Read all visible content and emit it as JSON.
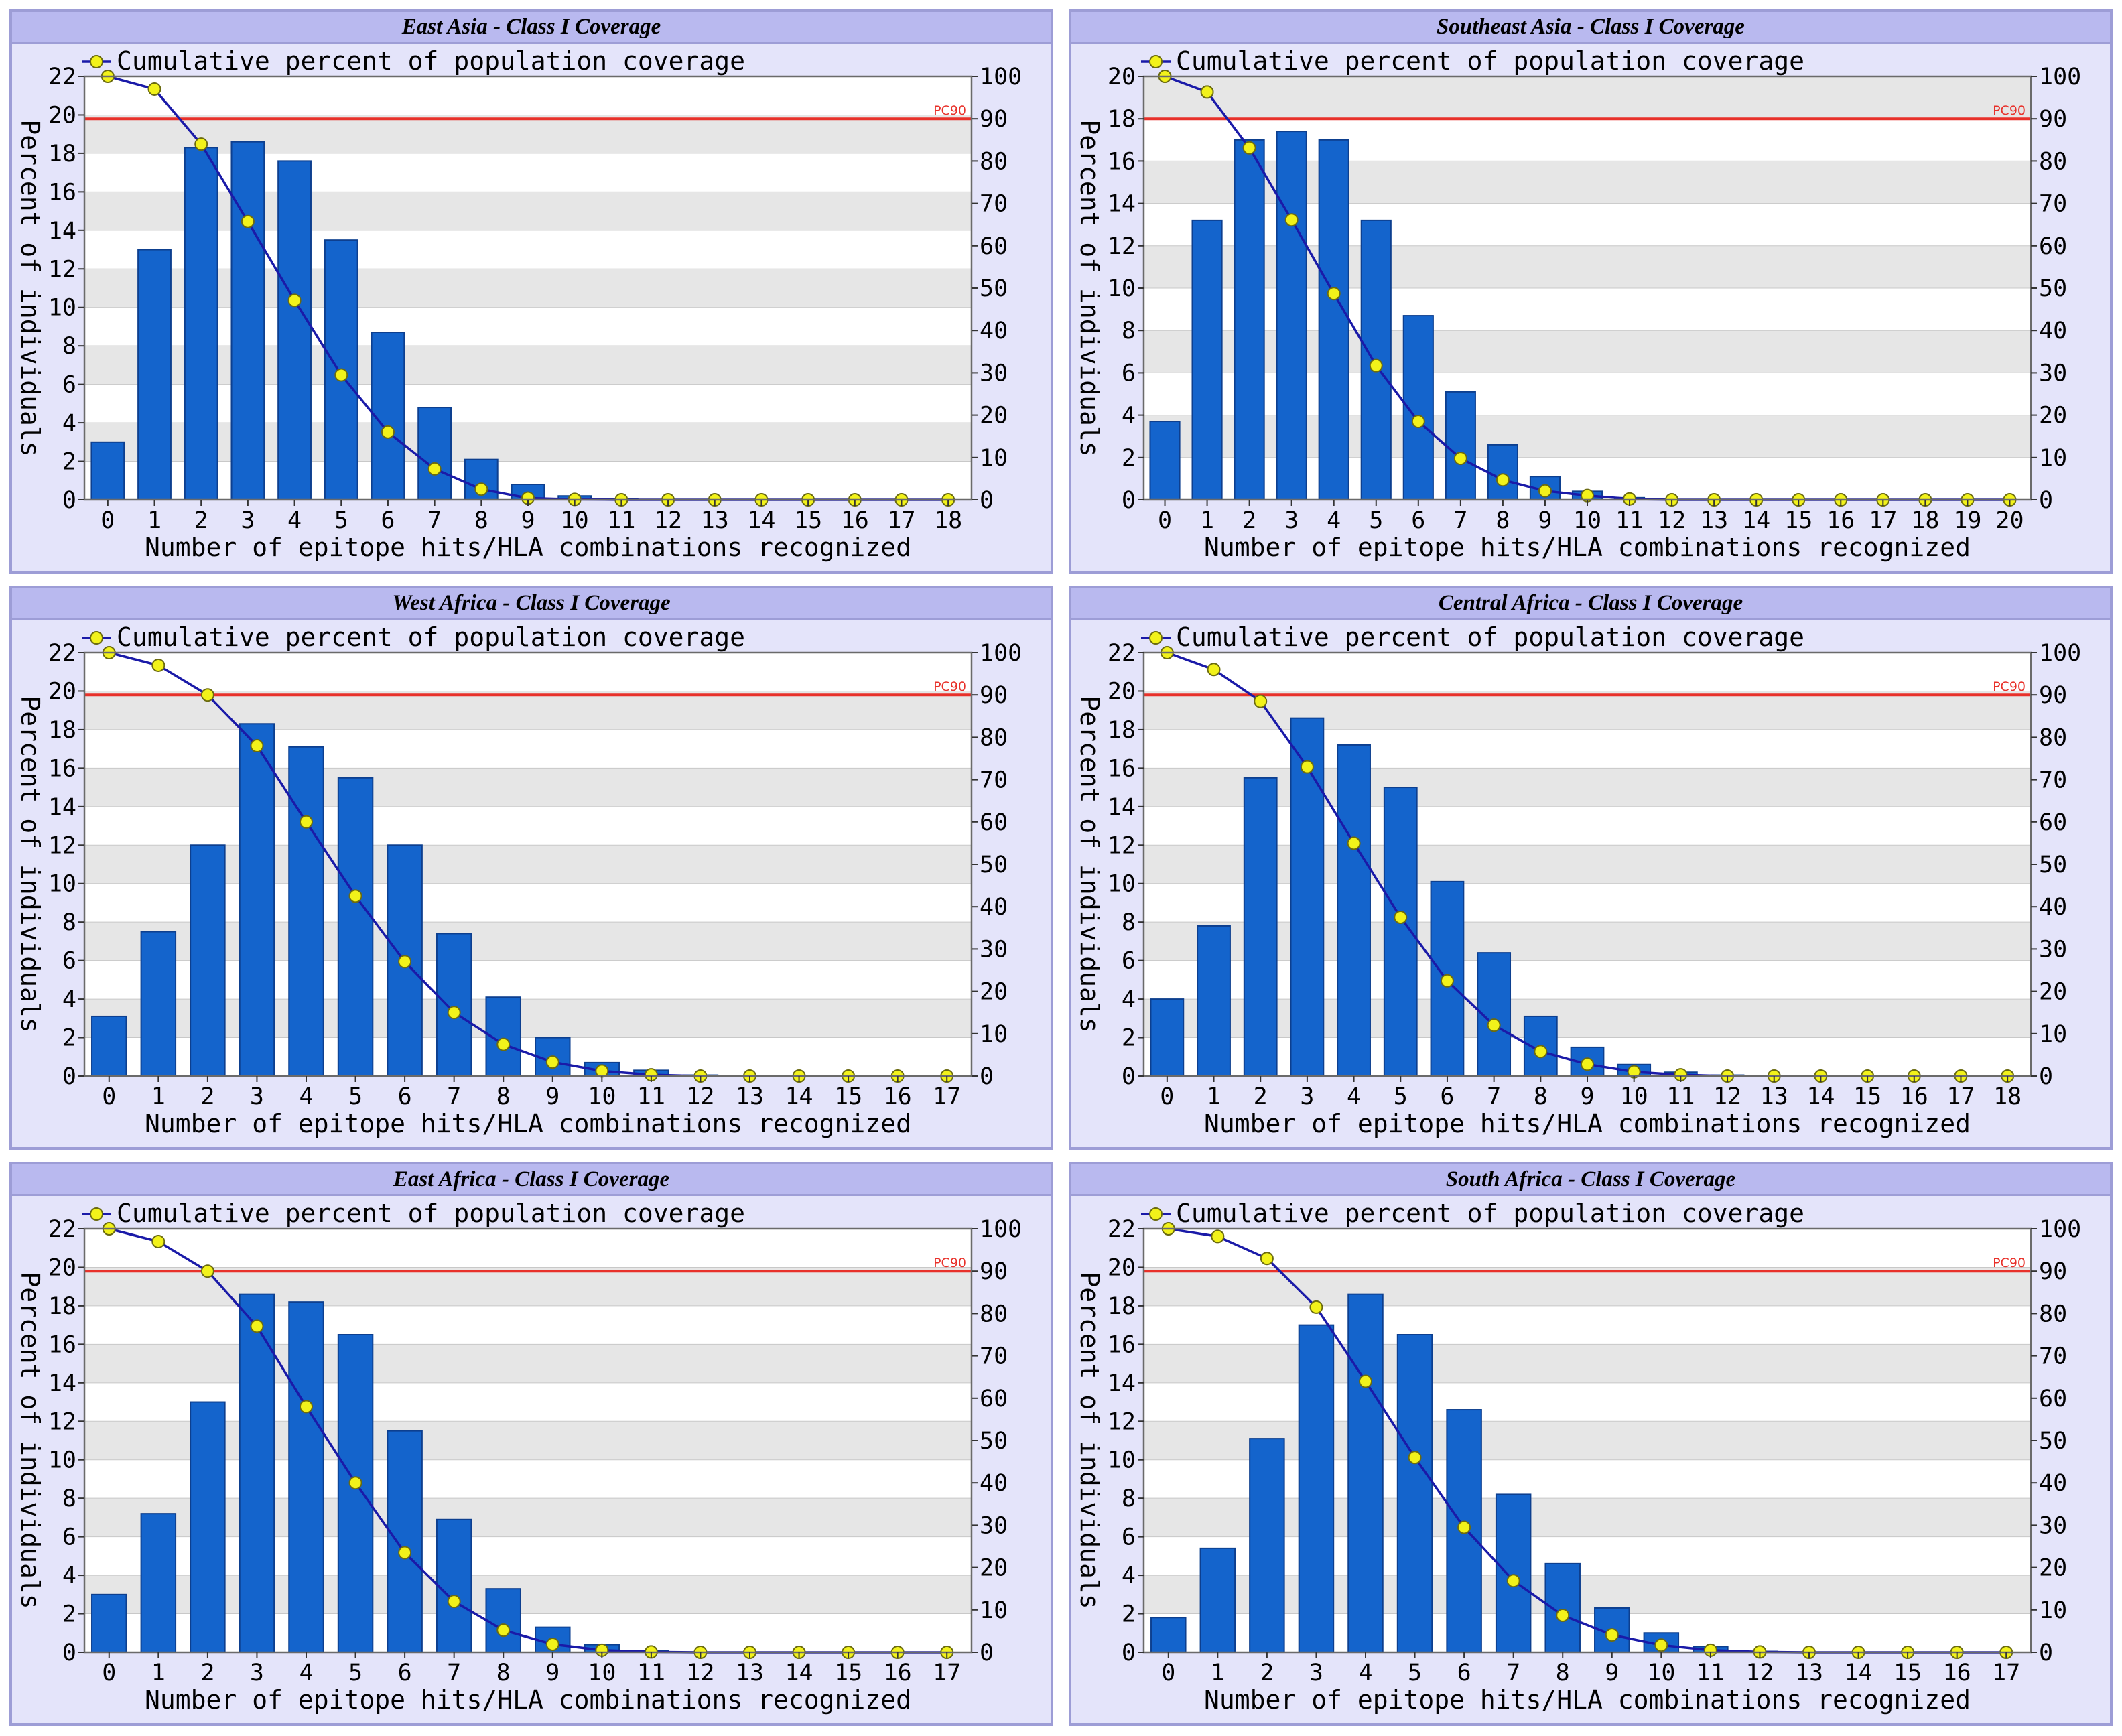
{
  "colors": {
    "bar": "#1464cc",
    "bar_edge": "#0d3f8f",
    "line": "#1a1aa8",
    "marker_fill": "#f2f21a",
    "marker_edge": "#6b6b10",
    "pc90_line": "#e8312a",
    "band_gray": "#e6e6e6",
    "plot_bg": "#ffffff",
    "panel_bg": "#e4e4fa"
  },
  "chart_data": [
    {
      "type": "bar",
      "title": "East Asia - Class I Coverage",
      "legend": "Cumulative percent of population coverage",
      "xlabel": "Number of epitope hits/HLA combinations recognized",
      "ylabel": "Percent of individuals",
      "categories": [
        "0",
        "1",
        "2",
        "3",
        "4",
        "5",
        "6",
        "7",
        "8",
        "9",
        "10",
        "11",
        "12",
        "13",
        "14",
        "15",
        "16",
        "17",
        "18"
      ],
      "series": [
        {
          "values": [
            3.0,
            13.0,
            18.3,
            18.6,
            17.6,
            13.5,
            8.7,
            4.8,
            2.1,
            0.8,
            0.2,
            0.05,
            0,
            0,
            0,
            0,
            0,
            0,
            0
          ]
        },
        {
          "name": "Cumulative percent of population coverage",
          "axis": "right",
          "values": [
            100,
            97.0,
            84.0,
            65.7,
            47.1,
            29.5,
            16.0,
            7.3,
            2.5,
            0.4,
            0.1,
            0,
            0,
            0,
            0,
            0,
            0,
            0,
            0
          ]
        }
      ],
      "ylim": [
        0,
        22
      ],
      "yticks": [
        0,
        2,
        4,
        6,
        8,
        10,
        12,
        14,
        16,
        18,
        20,
        22
      ],
      "y2lim": [
        0,
        100
      ],
      "y2ticks": [
        0,
        10,
        20,
        30,
        40,
        50,
        60,
        70,
        80,
        90,
        100
      ],
      "reference_line": {
        "label": "PC90",
        "value": 90
      },
      "grid": "alternating horizontal bands"
    },
    {
      "type": "bar",
      "title": "Southeast Asia - Class I Coverage",
      "legend": "Cumulative percent of population coverage",
      "xlabel": "Number of epitope hits/HLA combinations recognized",
      "ylabel": "Percent of individuals",
      "categories": [
        "0",
        "1",
        "2",
        "3",
        "4",
        "5",
        "6",
        "7",
        "8",
        "9",
        "10",
        "11",
        "12",
        "13",
        "14",
        "15",
        "16",
        "17",
        "18",
        "19",
        "20"
      ],
      "series": [
        {
          "values": [
            3.7,
            13.2,
            17.0,
            17.4,
            17.0,
            13.2,
            8.7,
            5.1,
            2.6,
            1.1,
            0.4,
            0.1,
            0,
            0,
            0,
            0,
            0,
            0,
            0,
            0,
            0
          ]
        },
        {
          "name": "Cumulative percent of population coverage",
          "axis": "right",
          "values": [
            100,
            96.3,
            83.1,
            66.1,
            48.7,
            31.7,
            18.5,
            9.8,
            4.7,
            2.1,
            1.0,
            0.2,
            0,
            0,
            0,
            0,
            0,
            0,
            0,
            0,
            0
          ]
        }
      ],
      "ylim": [
        0,
        20
      ],
      "yticks": [
        0,
        2,
        4,
        6,
        8,
        10,
        12,
        14,
        16,
        18,
        20
      ],
      "y2lim": [
        0,
        100
      ],
      "y2ticks": [
        0,
        10,
        20,
        30,
        40,
        50,
        60,
        70,
        80,
        90,
        100
      ],
      "reference_line": {
        "label": "PC90",
        "value": 90
      },
      "grid": "alternating horizontal bands"
    },
    {
      "type": "bar",
      "title": "West Africa - Class I Coverage",
      "legend": "Cumulative percent of population coverage",
      "xlabel": "Number of epitope hits/HLA combinations recognized",
      "ylabel": "Percent of individuals",
      "categories": [
        "0",
        "1",
        "2",
        "3",
        "4",
        "5",
        "6",
        "7",
        "8",
        "9",
        "10",
        "11",
        "12",
        "13",
        "14",
        "15",
        "16",
        "17"
      ],
      "series": [
        {
          "values": [
            3.1,
            7.5,
            12.0,
            18.3,
            17.1,
            15.5,
            12.0,
            7.4,
            4.1,
            2.0,
            0.7,
            0.3,
            0.05,
            0,
            0,
            0,
            0,
            0
          ]
        },
        {
          "name": "Cumulative percent of population coverage",
          "axis": "right",
          "values": [
            100,
            97.0,
            90.0,
            78.0,
            60.0,
            42.5,
            27.0,
            15.0,
            7.5,
            3.3,
            1.2,
            0.3,
            0,
            0,
            0,
            0,
            0,
            0
          ]
        }
      ],
      "ylim": [
        0,
        22
      ],
      "yticks": [
        0,
        2,
        4,
        6,
        8,
        10,
        12,
        14,
        16,
        18,
        20,
        22
      ],
      "y2lim": [
        0,
        100
      ],
      "y2ticks": [
        0,
        10,
        20,
        30,
        40,
        50,
        60,
        70,
        80,
        90,
        100
      ],
      "reference_line": {
        "label": "PC90",
        "value": 90
      },
      "grid": "alternating horizontal bands"
    },
    {
      "type": "bar",
      "title": "Central Africa - Class I Coverage",
      "legend": "Cumulative percent of population coverage",
      "xlabel": "Number of epitope hits/HLA combinations recognized",
      "ylabel": "Percent of individuals",
      "categories": [
        "0",
        "1",
        "2",
        "3",
        "4",
        "5",
        "6",
        "7",
        "8",
        "9",
        "10",
        "11",
        "12",
        "13",
        "14",
        "15",
        "16",
        "17",
        "18"
      ],
      "series": [
        {
          "values": [
            4.0,
            7.8,
            15.5,
            18.6,
            17.2,
            15.0,
            10.1,
            6.4,
            3.1,
            1.5,
            0.6,
            0.2,
            0.05,
            0,
            0,
            0,
            0,
            0,
            0
          ]
        },
        {
          "name": "Cumulative percent of population coverage",
          "axis": "right",
          "values": [
            100,
            96.0,
            88.5,
            73.0,
            55.0,
            37.5,
            22.5,
            12.0,
            5.8,
            2.8,
            1.0,
            0.3,
            0,
            0,
            0,
            0,
            0,
            0,
            0
          ]
        }
      ],
      "ylim": [
        0,
        22
      ],
      "yticks": [
        0,
        2,
        4,
        6,
        8,
        10,
        12,
        14,
        16,
        18,
        20,
        22
      ],
      "y2lim": [
        0,
        100
      ],
      "y2ticks": [
        0,
        10,
        20,
        30,
        40,
        50,
        60,
        70,
        80,
        90,
        100
      ],
      "reference_line": {
        "label": "PC90",
        "value": 90
      },
      "grid": "alternating horizontal bands"
    },
    {
      "type": "bar",
      "title": "East Africa - Class I Coverage",
      "legend": "Cumulative percent of population coverage",
      "xlabel": "Number of epitope hits/HLA combinations recognized",
      "ylabel": "Percent of individuals",
      "categories": [
        "0",
        "1",
        "2",
        "3",
        "4",
        "5",
        "6",
        "7",
        "8",
        "9",
        "10",
        "11",
        "12",
        "13",
        "14",
        "15",
        "16",
        "17"
      ],
      "series": [
        {
          "values": [
            3.0,
            7.2,
            13.0,
            18.6,
            18.2,
            16.5,
            11.5,
            6.9,
            3.3,
            1.3,
            0.4,
            0.1,
            0,
            0,
            0,
            0,
            0,
            0
          ]
        },
        {
          "name": "Cumulative percent of population coverage",
          "axis": "right",
          "values": [
            100,
            97.0,
            90.0,
            77.0,
            58.0,
            40.0,
            23.5,
            12.0,
            5.2,
            1.9,
            0.5,
            0.1,
            0,
            0,
            0,
            0,
            0,
            0
          ]
        }
      ],
      "ylim": [
        0,
        22
      ],
      "yticks": [
        0,
        2,
        4,
        6,
        8,
        10,
        12,
        14,
        16,
        18,
        20,
        22
      ],
      "y2lim": [
        0,
        100
      ],
      "y2ticks": [
        0,
        10,
        20,
        30,
        40,
        50,
        60,
        70,
        80,
        90,
        100
      ],
      "reference_line": {
        "label": "PC90",
        "value": 90
      },
      "grid": "alternating horizontal bands"
    },
    {
      "type": "bar",
      "title": "South Africa - Class I Coverage",
      "legend": "Cumulative percent of population coverage",
      "xlabel": "Number of epitope hits/HLA combinations recognized",
      "ylabel": "Percent of individuals",
      "categories": [
        "0",
        "1",
        "2",
        "3",
        "4",
        "5",
        "6",
        "7",
        "8",
        "9",
        "10",
        "11",
        "12",
        "13",
        "14",
        "15",
        "16",
        "17"
      ],
      "series": [
        {
          "values": [
            1.8,
            5.4,
            11.1,
            17.0,
            18.6,
            16.5,
            12.6,
            8.2,
            4.6,
            2.3,
            1.0,
            0.3,
            0.05,
            0,
            0,
            0,
            0,
            0
          ]
        },
        {
          "name": "Cumulative percent of population coverage",
          "axis": "right",
          "values": [
            100,
            98.2,
            93.0,
            81.5,
            64.0,
            46.0,
            29.5,
            16.9,
            8.7,
            4.1,
            1.7,
            0.5,
            0.1,
            0,
            0,
            0,
            0,
            0
          ]
        }
      ],
      "ylim": [
        0,
        22
      ],
      "yticks": [
        0,
        2,
        4,
        6,
        8,
        10,
        12,
        14,
        16,
        18,
        20,
        22
      ],
      "y2lim": [
        0,
        100
      ],
      "y2ticks": [
        0,
        10,
        20,
        30,
        40,
        50,
        60,
        70,
        80,
        90,
        100
      ],
      "reference_line": {
        "label": "PC90",
        "value": 90
      },
      "grid": "alternating horizontal bands"
    }
  ]
}
